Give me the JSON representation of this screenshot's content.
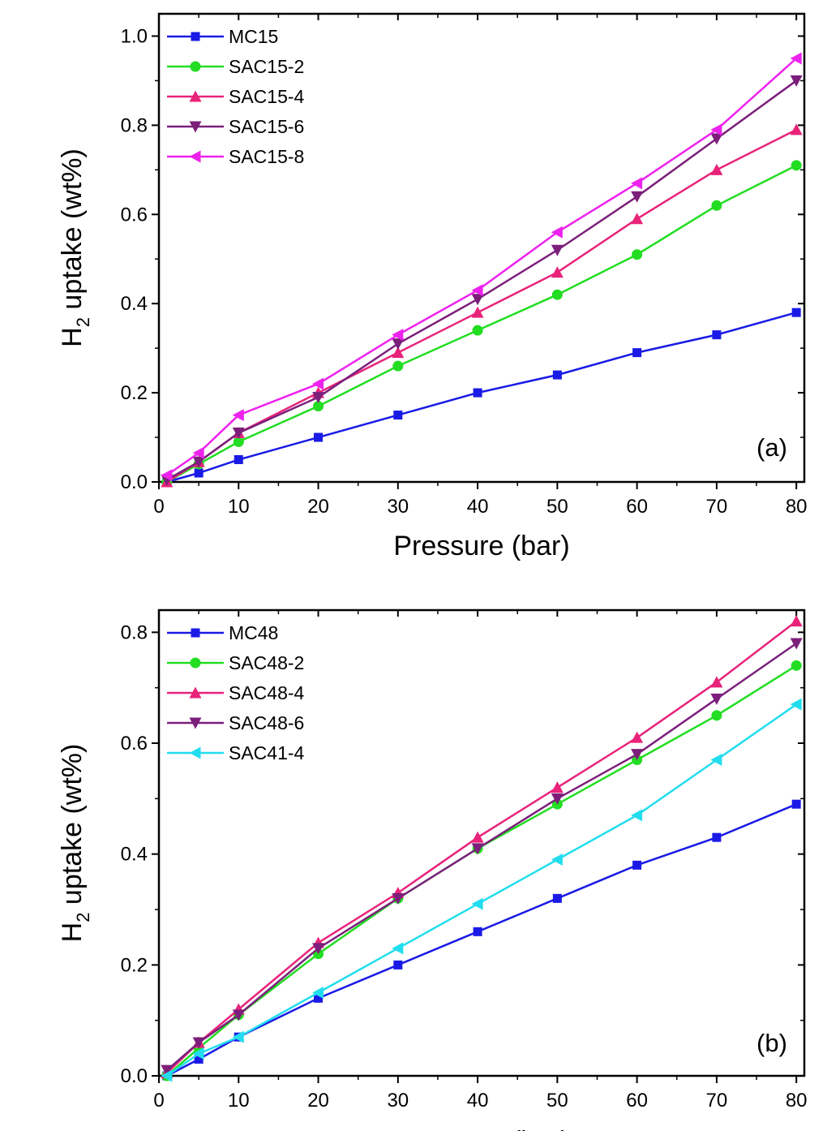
{
  "chart_data": [
    {
      "type": "line",
      "panel_label": "(a)",
      "xlabel": "Pressure (bar)",
      "ylabel_main": "H",
      "ylabel_sub": "2",
      "ylabel_rest": " uptake (wt%)",
      "xlim": [
        0,
        81
      ],
      "ylim": [
        0,
        1.05
      ],
      "xticks": [
        "0",
        "10",
        "20",
        "30",
        "40",
        "50",
        "60",
        "70",
        "80"
      ],
      "xtick_values": [
        0,
        10,
        20,
        30,
        40,
        50,
        60,
        70,
        80
      ],
      "yticks": [
        "0.0",
        "0.2",
        "0.4",
        "0.6",
        "0.8",
        "1.0"
      ],
      "ytick_values": [
        0,
        0.2,
        0.4,
        0.6,
        0.8,
        1.0
      ],
      "legend_position": "top-left",
      "grid": false,
      "x": [
        1,
        5,
        10,
        20,
        30,
        40,
        50,
        60,
        70,
        80
      ],
      "series": [
        {
          "name": "MC15",
          "color": "#1a1ae6",
          "marker": "square",
          "values": [
            0.0,
            0.02,
            0.05,
            0.1,
            0.15,
            0.2,
            0.24,
            0.29,
            0.33,
            0.38
          ]
        },
        {
          "name": "SAC15-2",
          "color": "#22dd22",
          "marker": "circle",
          "values": [
            0.0,
            0.04,
            0.09,
            0.17,
            0.26,
            0.34,
            0.42,
            0.51,
            0.62,
            0.71
          ]
        },
        {
          "name": "SAC15-4",
          "color": "#e8237a",
          "marker": "triangle-up",
          "values": [
            0.0,
            0.045,
            0.11,
            0.2,
            0.29,
            0.38,
            0.47,
            0.59,
            0.7,
            0.79
          ]
        },
        {
          "name": "SAC15-6",
          "color": "#7b1f7b",
          "marker": "triangle-down",
          "values": [
            0.005,
            0.045,
            0.11,
            0.19,
            0.31,
            0.41,
            0.52,
            0.64,
            0.77,
            0.9
          ]
        },
        {
          "name": "SAC15-8",
          "color": "#ee22ee",
          "marker": "triangle-left",
          "values": [
            0.015,
            0.065,
            0.15,
            0.22,
            0.33,
            0.43,
            0.56,
            0.67,
            0.79,
            0.95
          ]
        }
      ]
    },
    {
      "type": "line",
      "panel_label": "(b)",
      "xlabel": "Pressure (bar)",
      "ylabel_main": "H",
      "ylabel_sub": "2",
      "ylabel_rest": " uptake (wt%)",
      "xlim": [
        0,
        81
      ],
      "ylim": [
        0,
        0.84
      ],
      "xticks": [
        "0",
        "10",
        "20",
        "30",
        "40",
        "50",
        "60",
        "70",
        "80"
      ],
      "xtick_values": [
        0,
        10,
        20,
        30,
        40,
        50,
        60,
        70,
        80
      ],
      "yticks": [
        "0.0",
        "0.2",
        "0.4",
        "0.6",
        "0.8"
      ],
      "ytick_values": [
        0,
        0.2,
        0.4,
        0.6,
        0.8
      ],
      "legend_position": "top-left",
      "grid": false,
      "x": [
        1,
        5,
        10,
        20,
        30,
        40,
        50,
        60,
        70,
        80
      ],
      "series": [
        {
          "name": "MC48",
          "color": "#1a1ae6",
          "marker": "square",
          "values": [
            0.0,
            0.03,
            0.07,
            0.14,
            0.2,
            0.26,
            0.32,
            0.38,
            0.43,
            0.49
          ]
        },
        {
          "name": "SAC48-2",
          "color": "#22dd22",
          "marker": "circle",
          "values": [
            0.0,
            0.05,
            0.11,
            0.22,
            0.32,
            0.41,
            0.49,
            0.57,
            0.65,
            0.74
          ]
        },
        {
          "name": "SAC48-4",
          "color": "#e8237a",
          "marker": "triangle-up",
          "values": [
            0.005,
            0.06,
            0.12,
            0.24,
            0.33,
            0.43,
            0.52,
            0.61,
            0.71,
            0.82
          ]
        },
        {
          "name": "SAC48-6",
          "color": "#7b1f7b",
          "marker": "triangle-down",
          "values": [
            0.01,
            0.06,
            0.11,
            0.23,
            0.32,
            0.41,
            0.5,
            0.58,
            0.68,
            0.78
          ]
        },
        {
          "name": "SAC41-4",
          "color": "#22ddee",
          "marker": "triangle-left",
          "values": [
            0.0,
            0.04,
            0.07,
            0.15,
            0.23,
            0.31,
            0.39,
            0.47,
            0.57,
            0.67
          ]
        }
      ]
    }
  ]
}
